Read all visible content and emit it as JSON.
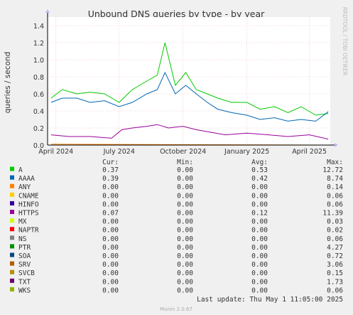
{
  "chart_data": {
    "type": "line",
    "title": "Unbound DNS queries by type - by year",
    "ylabel": "queries / second",
    "xlabel": "",
    "side_label": "RRDTOOL / TOBI OETIKER",
    "x_range": [
      "2024-03-20",
      "2025-05-01"
    ],
    "ylim": [
      0,
      1.5
    ],
    "y_ticks": [
      "0.0",
      "0.2",
      "0.4",
      "0.6",
      "0.8",
      "1.0",
      "1.2",
      "1.4"
    ],
    "y_tick_values": [
      0,
      0.2,
      0.4,
      0.6,
      0.8,
      1.0,
      1.2,
      1.4
    ],
    "x_ticks": [
      {
        "label": "April 2024",
        "date": "2024-04-01"
      },
      {
        "label": "July 2024",
        "date": "2024-07-01"
      },
      {
        "label": "October 2024",
        "date": "2024-10-01"
      },
      {
        "label": "January 2025",
        "date": "2025-01-01"
      },
      {
        "label": "April 2025",
        "date": "2025-04-01"
      }
    ],
    "grid": true,
    "legend_header": {
      "cur": "Cur:",
      "min": "Min:",
      "avg": "Avg:",
      "max": "Max:"
    },
    "series": [
      {
        "name": "A",
        "color": "#00cc00",
        "cur": "0.37",
        "min": "0.00",
        "avg": "0.53",
        "max": "12.72",
        "x": [
          "2024-03-25",
          "2024-04-10",
          "2024-05-01",
          "2024-05-20",
          "2024-06-10",
          "2024-07-01",
          "2024-07-20",
          "2024-08-10",
          "2024-08-25",
          "2024-09-05",
          "2024-09-20",
          "2024-10-05",
          "2024-10-20",
          "2024-11-05",
          "2024-11-20",
          "2024-12-10",
          "2025-01-01",
          "2025-01-20",
          "2025-02-10",
          "2025-03-01",
          "2025-03-20",
          "2025-04-10",
          "2025-04-28"
        ],
        "y": [
          0.55,
          0.65,
          0.6,
          0.62,
          0.6,
          0.5,
          0.65,
          0.75,
          0.82,
          1.2,
          0.7,
          0.85,
          0.65,
          0.6,
          0.55,
          0.5,
          0.5,
          0.42,
          0.45,
          0.38,
          0.45,
          0.35,
          0.37
        ]
      },
      {
        "name": "AAAA",
        "color": "#0066b3",
        "cur": "0.39",
        "min": "0.00",
        "avg": "0.42",
        "max": "8.74",
        "x": [
          "2024-03-25",
          "2024-04-10",
          "2024-05-01",
          "2024-05-20",
          "2024-06-10",
          "2024-07-01",
          "2024-07-20",
          "2024-08-10",
          "2024-08-25",
          "2024-09-05",
          "2024-09-20",
          "2024-10-05",
          "2024-10-20",
          "2024-11-05",
          "2024-11-20",
          "2024-12-10",
          "2025-01-01",
          "2025-01-20",
          "2025-02-10",
          "2025-03-01",
          "2025-03-20",
          "2025-04-10",
          "2025-04-28"
        ],
        "y": [
          0.5,
          0.55,
          0.55,
          0.5,
          0.52,
          0.45,
          0.5,
          0.6,
          0.65,
          0.85,
          0.6,
          0.7,
          0.6,
          0.5,
          0.42,
          0.38,
          0.35,
          0.3,
          0.32,
          0.28,
          0.3,
          0.28,
          0.39
        ]
      },
      {
        "name": "ANY",
        "color": "#ff8000",
        "cur": "0.00",
        "min": "0.00",
        "avg": "0.00",
        "max": "0.14",
        "x": [
          "2024-03-25",
          "2025-04-28"
        ],
        "y": [
          0.01,
          0.0
        ]
      },
      {
        "name": "CNAME",
        "color": "#ffcc00",
        "cur": "0.00",
        "min": "0.00",
        "avg": "0.00",
        "max": "0.06",
        "x": [
          "2024-03-25",
          "2025-04-28"
        ],
        "y": [
          0.0,
          0.0
        ]
      },
      {
        "name": "HINFO",
        "color": "#330099",
        "cur": "0.00",
        "min": "0.00",
        "avg": "0.00",
        "max": "0.06",
        "x": [
          "2024-03-25",
          "2025-04-28"
        ],
        "y": [
          0.0,
          0.0
        ]
      },
      {
        "name": "HTTPS",
        "color": "#990099",
        "cur": "0.07",
        "min": "0.00",
        "avg": "0.12",
        "max": "11.39",
        "x": [
          "2024-03-25",
          "2024-04-20",
          "2024-05-20",
          "2024-06-20",
          "2024-07-05",
          "2024-07-20",
          "2024-08-10",
          "2024-08-25",
          "2024-09-10",
          "2024-10-01",
          "2024-10-20",
          "2024-11-10",
          "2024-12-01",
          "2025-01-01",
          "2025-02-01",
          "2025-03-01",
          "2025-04-01",
          "2025-04-28"
        ],
        "y": [
          0.12,
          0.1,
          0.1,
          0.08,
          0.18,
          0.2,
          0.22,
          0.24,
          0.2,
          0.22,
          0.18,
          0.15,
          0.12,
          0.14,
          0.12,
          0.1,
          0.12,
          0.07
        ]
      },
      {
        "name": "MX",
        "color": "#ccff00",
        "cur": "0.00",
        "min": "0.00",
        "avg": "0.00",
        "max": "0.03",
        "x": [
          "2024-03-25",
          "2025-04-28"
        ],
        "y": [
          0.0,
          0.0
        ]
      },
      {
        "name": "NAPTR",
        "color": "#ff0000",
        "cur": "0.00",
        "min": "0.00",
        "avg": "0.00",
        "max": "0.02",
        "x": [
          "2024-03-25",
          "2025-04-28"
        ],
        "y": [
          0.0,
          0.0
        ]
      },
      {
        "name": "NS",
        "color": "#808080",
        "cur": "0.00",
        "min": "0.00",
        "avg": "0.00",
        "max": "0.06",
        "x": [
          "2024-03-25",
          "2025-04-28"
        ],
        "y": [
          0.0,
          0.0
        ]
      },
      {
        "name": "PTR",
        "color": "#008f00",
        "cur": "0.00",
        "min": "0.00",
        "avg": "0.00",
        "max": "4.27",
        "x": [
          "2024-03-25",
          "2025-04-28"
        ],
        "y": [
          0.0,
          0.0
        ]
      },
      {
        "name": "SOA",
        "color": "#00487d",
        "cur": "0.00",
        "min": "0.00",
        "avg": "0.00",
        "max": "0.72",
        "x": [
          "2024-03-25",
          "2025-04-28"
        ],
        "y": [
          0.0,
          0.0
        ]
      },
      {
        "name": "SRV",
        "color": "#b35a00",
        "cur": "0.00",
        "min": "0.00",
        "avg": "0.00",
        "max": "3.06",
        "x": [
          "2024-03-25",
          "2025-04-28"
        ],
        "y": [
          0.0,
          0.0
        ]
      },
      {
        "name": "SVCB",
        "color": "#b38f00",
        "cur": "0.00",
        "min": "0.00",
        "avg": "0.00",
        "max": "0.15",
        "x": [
          "2024-03-25",
          "2025-04-28"
        ],
        "y": [
          0.0,
          0.0
        ]
      },
      {
        "name": "TXT",
        "color": "#6b006b",
        "cur": "0.00",
        "min": "0.00",
        "avg": "0.00",
        "max": "1.73",
        "x": [
          "2024-03-25",
          "2025-04-28"
        ],
        "y": [
          0.0,
          0.0
        ]
      },
      {
        "name": "WKS",
        "color": "#8fb300",
        "cur": "0.00",
        "min": "0.00",
        "avg": "0.00",
        "max": "0.06",
        "x": [
          "2024-03-25",
          "2025-04-28"
        ],
        "y": [
          0.0,
          0.0
        ]
      }
    ],
    "last_update": "Last update: Thu May  1 11:05:00 2025",
    "footer": "Munin 2.0.67"
  }
}
